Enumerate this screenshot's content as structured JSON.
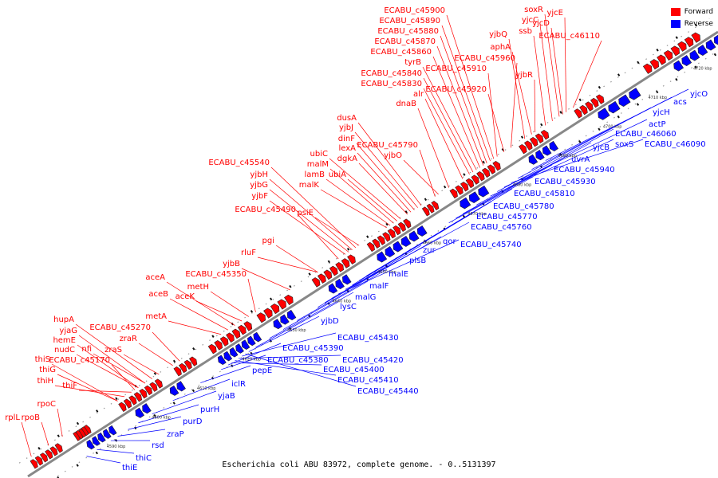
{
  "legend": {
    "forward_label": "Forward",
    "reverse_label": "Reverse",
    "forward_color": "#ff0000",
    "reverse_color": "#0000ff"
  },
  "caption": "Escherichia coli ABU 83972, complete genome. - 0..5131397",
  "axis_labels": [
    "4590 kbp",
    "4600 kbp",
    "4610 kbp",
    "4620 kbp",
    "4630 kbp",
    "4640 kbp",
    "4650 kbp",
    "4660 kbp",
    "4670 kbp",
    "4680 kbp",
    "4690 kbp",
    "4700 kbp",
    "4710 kbp",
    "4720 kbp"
  ],
  "forward_genes": [
    "rplL",
    "rpoB",
    "rpoC",
    "thiS",
    "thiG",
    "thiH",
    "thiF",
    "ECABU_c45170",
    "nudC",
    "hemE",
    "nfi",
    "yjaG",
    "hupA",
    "zraS",
    "zraR",
    "ECABU_c45270",
    "metA",
    "aceB",
    "aceA",
    "aceK",
    "metH",
    "ECABU_c45350",
    "yjbB",
    "rluF",
    "pgi",
    "ECABU_c45490",
    "yjbF",
    "yjbG",
    "yjbH",
    "ECABU_c45540",
    "psiE",
    "malK",
    "lamB",
    "malM",
    "ubiA",
    "ubiC",
    "dgkA",
    "lexA",
    "dinF",
    "yjbJ",
    "dusA",
    "ECABU_c45790",
    "yjbO",
    "dnaB",
    "alr",
    "ECABU_c45830",
    "ECABU_c45840",
    "tyrB",
    "ECABU_c45860",
    "ECABU_c45870",
    "ECABU_c45880",
    "ECABU_c45890",
    "ECABU_c45900",
    "ECABU_c45910",
    "ECABU_c45920",
    "ECABU_c45960",
    "yjbQ",
    "aphA",
    "yjbR",
    "ssb",
    "yjcC",
    "soxR",
    "yjcD",
    "yjcE",
    "ECABU_c46110"
  ],
  "reverse_genes": [
    "thiE",
    "thiC",
    "rsd",
    "zraP",
    "purD",
    "purH",
    "yjaB",
    "iclR",
    "pepE",
    "ECABU_c45380",
    "ECABU_c45390",
    "ECABU_c45400",
    "ECABU_c45410",
    "ECABU_c45420",
    "ECABU_c45430",
    "ECABU_c45440",
    "yjbD",
    "lysC",
    "malG",
    "malF",
    "malE",
    "plsB",
    "zur",
    "qor",
    "ECABU_c45740",
    "ECABU_c45760",
    "ECABU_c45770",
    "ECABU_c45780",
    "ECABU_c45810",
    "ECABU_c45930",
    "ECABU_c45940",
    "uvrA",
    "yjcB",
    "soxS",
    "ECABU_c46060",
    "actP",
    "ECABU_c46090",
    "yjcH",
    "acs",
    "yjcO"
  ]
}
